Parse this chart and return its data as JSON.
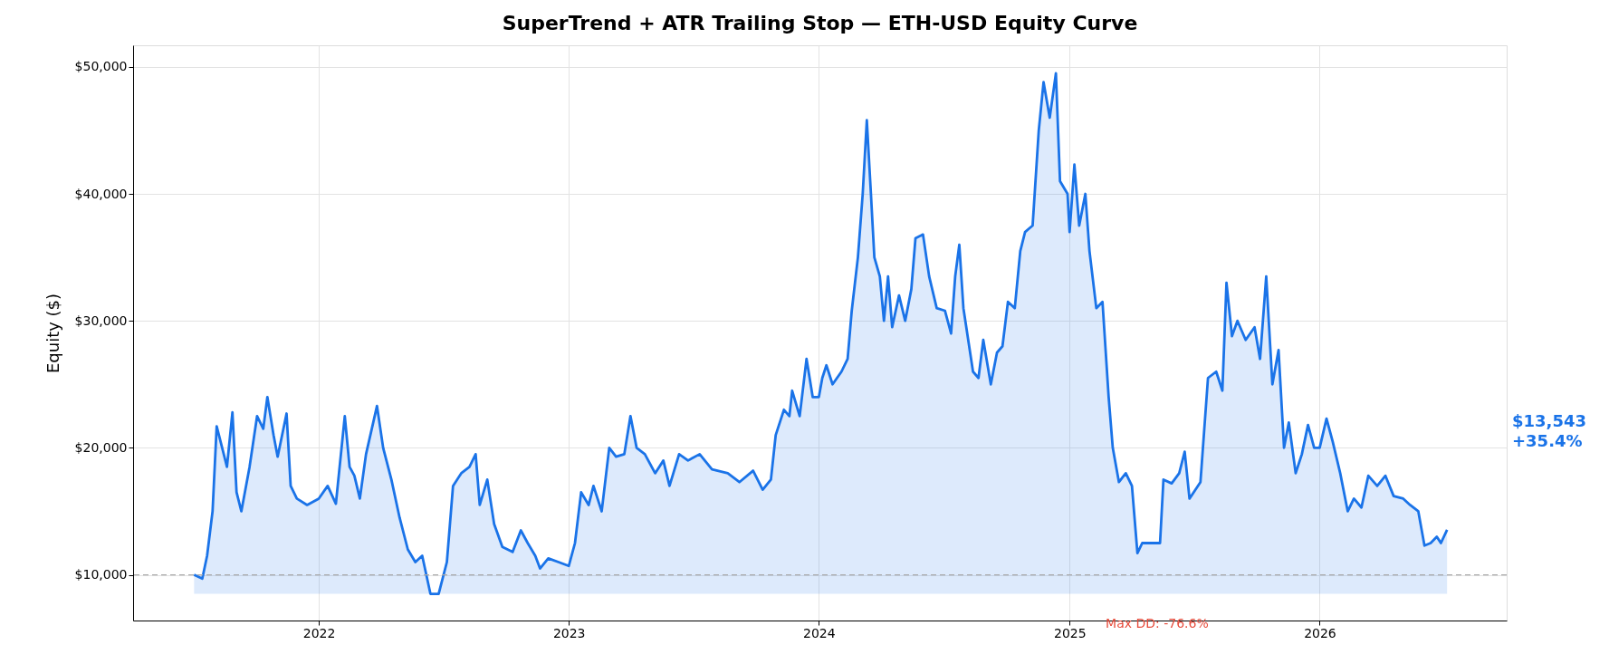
{
  "chart_data": {
    "type": "area",
    "title": "SuperTrend + ATR Trailing Stop — ETH-USD Equity Curve",
    "ylabel": "Equity ($)",
    "x": [
      "2021-07-03",
      "2021-07-15",
      "2021-07-22",
      "2021-07-30",
      "2021-08-05",
      "2021-08-13",
      "2021-08-20",
      "2021-08-28",
      "2021-09-03",
      "2021-09-10",
      "2021-09-22",
      "2021-10-03",
      "2021-10-12",
      "2021-10-18",
      "2021-10-27",
      "2021-11-02",
      "2021-11-15",
      "2021-11-21",
      "2021-11-30",
      "2021-12-15",
      "2022-01-01",
      "2022-01-14",
      "2022-01-26",
      "2022-02-08",
      "2022-02-15",
      "2022-02-22",
      "2022-03-02",
      "2022-03-11",
      "2022-03-27",
      "2022-04-05",
      "2022-04-17",
      "2022-04-29",
      "2022-05-11",
      "2022-05-22",
      "2022-06-01",
      "2022-06-13",
      "2022-06-25",
      "2022-07-07",
      "2022-07-16",
      "2022-07-28",
      "2022-08-09",
      "2022-08-18",
      "2022-08-24",
      "2022-09-04",
      "2022-09-14",
      "2022-09-26",
      "2022-10-11",
      "2022-10-23",
      "2022-11-02",
      "2022-11-13",
      "2022-11-20",
      "2022-12-02",
      "2022-12-17",
      "2023-01-01",
      "2023-01-10",
      "2023-01-19",
      "2023-01-30",
      "2023-02-06",
      "2023-02-18",
      "2023-03-01",
      "2023-03-11",
      "2023-03-23",
      "2023-04-01",
      "2023-04-10",
      "2023-04-22",
      "2023-05-07",
      "2023-05-19",
      "2023-05-28",
      "2023-06-11",
      "2023-06-24",
      "2023-07-11",
      "2023-07-29",
      "2023-08-21",
      "2023-09-07",
      "2023-09-27",
      "2023-10-11",
      "2023-10-23",
      "2023-10-30",
      "2023-11-11",
      "2023-11-19",
      "2023-11-23",
      "2023-12-04",
      "2023-12-14",
      "2023-12-23",
      "2024-01-01",
      "2024-01-06",
      "2024-01-12",
      "2024-01-21",
      "2024-02-03",
      "2024-02-12",
      "2024-02-18",
      "2024-02-27",
      "2024-03-05",
      "2024-03-11",
      "2024-03-17",
      "2024-03-22",
      "2024-03-30",
      "2024-04-05",
      "2024-04-11",
      "2024-04-17",
      "2024-04-27",
      "2024-05-06",
      "2024-05-15",
      "2024-05-21",
      "2024-06-01",
      "2024-06-10",
      "2024-06-21",
      "2024-07-03",
      "2024-07-12",
      "2024-07-18",
      "2024-07-24",
      "2024-07-30",
      "2024-08-13",
      "2024-08-21",
      "2024-08-28",
      "2024-09-08",
      "2024-09-17",
      "2024-09-25",
      "2024-10-03",
      "2024-10-13",
      "2024-10-21",
      "2024-10-28",
      "2024-11-08",
      "2024-11-17",
      "2024-11-24",
      "2024-12-03",
      "2024-12-12",
      "2024-12-18",
      "2024-12-29",
      "2025-01-01",
      "2025-01-08",
      "2025-01-15",
      "2025-01-24",
      "2025-01-30",
      "2025-02-09",
      "2025-02-18",
      "2025-02-27",
      "2025-03-05",
      "2025-03-14",
      "2025-03-24",
      "2025-04-02",
      "2025-04-10",
      "2025-04-17",
      "2025-05-02",
      "2025-05-13",
      "2025-05-18",
      "2025-05-30",
      "2025-06-10",
      "2025-06-18",
      "2025-06-25",
      "2025-07-11",
      "2025-07-22",
      "2025-08-03",
      "2025-08-12",
      "2025-08-18",
      "2025-08-26",
      "2025-09-03",
      "2025-09-15",
      "2025-09-28",
      "2025-10-06",
      "2025-10-15",
      "2025-10-24",
      "2025-11-02",
      "2025-11-10",
      "2025-11-17",
      "2025-11-27",
      "2025-12-06",
      "2025-12-15",
      "2025-12-24",
      "2026-01-01",
      "2026-01-11",
      "2026-01-20",
      "2026-01-31",
      "2026-02-11",
      "2026-02-20",
      "2026-03-03",
      "2026-03-13",
      "2026-03-26",
      "2026-04-07",
      "2026-04-19",
      "2026-05-03",
      "2026-05-13",
      "2026-05-25",
      "2026-06-03",
      "2026-06-12",
      "2026-06-21",
      "2026-06-27",
      "2026-07-06"
    ],
    "series": [
      {
        "color": "#1a73e8",
        "values": [
          10000,
          9700,
          11500,
          15000,
          21700,
          20000,
          18500,
          22800,
          16500,
          15000,
          18500,
          22500,
          21500,
          24000,
          21000,
          19300,
          22700,
          17000,
          16000,
          15500,
          16000,
          17000,
          15600,
          22500,
          18500,
          17800,
          16000,
          19500,
          23300,
          20000,
          17500,
          14500,
          12000,
          11000,
          11500,
          8500,
          8500,
          11000,
          17000,
          18000,
          18500,
          19500,
          15500,
          17500,
          14000,
          12200,
          11800,
          13500,
          12500,
          11500,
          10500,
          11300,
          11000,
          10700,
          12500,
          16500,
          15500,
          17000,
          15000,
          20000,
          19300,
          19500,
          22500,
          20000,
          19500,
          18000,
          19000,
          17000,
          19500,
          19000,
          19500,
          18300,
          18000,
          17300,
          18200,
          16700,
          17500,
          21000,
          23000,
          22500,
          24500,
          22500,
          27000,
          24000,
          24000,
          25500,
          26500,
          25000,
          26000,
          27000,
          30800,
          35000,
          40000,
          45800,
          40000,
          35000,
          33500,
          30000,
          33500,
          29500,
          32000,
          30000,
          32500,
          36500,
          36800,
          33500,
          31000,
          30800,
          29000,
          33500,
          36000,
          31000,
          26000,
          25500,
          28500,
          25000,
          27500,
          28000,
          31500,
          31000,
          35500,
          37000,
          37500,
          45000,
          48800,
          46000,
          49500,
          41000,
          40000,
          37000,
          42300,
          37500,
          40000,
          35500,
          31000,
          31500,
          24000,
          20000,
          17300,
          18000,
          17000,
          11700,
          12500,
          12500,
          12500,
          17500,
          17200,
          18000,
          19700,
          16000,
          17300,
          25500,
          26000,
          24500,
          33000,
          28800,
          30000,
          28500,
          29500,
          27000,
          33500,
          25000,
          27700,
          20000,
          22000,
          18000,
          19500,
          21800,
          20000,
          20000,
          22300,
          20500,
          18000,
          15000,
          16000,
          15300,
          17800,
          17000,
          17800,
          16200,
          16000,
          15500,
          15000,
          12300,
          12500,
          13000,
          12500,
          13543
        ]
      }
    ],
    "xlim": [
      "2021-04-05",
      "2026-10-01"
    ],
    "xticks": [
      {
        "value": "2022-01-01",
        "label": "2022"
      },
      {
        "value": "2023-01-01",
        "label": "2023"
      },
      {
        "value": "2024-01-01",
        "label": "2024"
      },
      {
        "value": "2025-01-01",
        "label": "2025"
      },
      {
        "value": "2026-01-01",
        "label": "2026"
      }
    ],
    "ylim": [
      6400,
      51700
    ],
    "yticks": [
      {
        "value": 10000,
        "label": "$10,000"
      },
      {
        "value": 20000,
        "label": "$20,000"
      },
      {
        "value": 30000,
        "label": "$30,000"
      },
      {
        "value": 40000,
        "label": "$40,000"
      },
      {
        "value": 50000,
        "label": "$50,000"
      }
    ],
    "grid": true,
    "ref_lines": [
      {
        "axis": "y",
        "value": 10000,
        "color": "#aaaaaa",
        "line_style": "dashed"
      }
    ],
    "annotations": [
      "Max DD: -76.6%",
      "$13,543\n+35.4%"
    ]
  }
}
